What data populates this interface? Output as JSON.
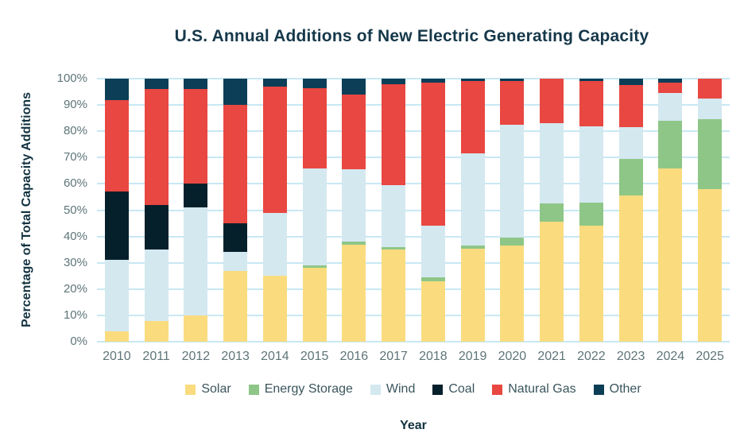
{
  "chart_data": {
    "type": "bar",
    "stacked": true,
    "title": "U.S. Annual Additions of New Electric Generating Capacity",
    "xlabel": "Year",
    "ylabel": "Percentage of Total Capacity Additions",
    "ylim": [
      0,
      100
    ],
    "y_ticks": [
      "0%",
      "10%",
      "20%",
      "30%",
      "40%",
      "50%",
      "60%",
      "70%",
      "80%",
      "90%",
      "100%"
    ],
    "grid": true,
    "legend_position": "bottom",
    "categories": [
      "2010",
      "2011",
      "2012",
      "2013",
      "2014",
      "2015",
      "2016",
      "2017",
      "2018",
      "2019",
      "2020",
      "2021",
      "2022",
      "2023",
      "2024",
      "2025"
    ],
    "series": [
      {
        "name": "Solar",
        "color": "#FADC7F",
        "values": [
          4,
          8,
          10,
          27,
          25,
          28,
          37,
          35,
          23,
          35.5,
          36.5,
          45.5,
          44,
          55.5,
          66,
          58
        ]
      },
      {
        "name": "Energy Storage",
        "color": "#8EC687",
        "values": [
          0,
          0,
          0,
          0,
          0,
          1,
          1,
          1,
          1.5,
          1,
          3,
          7,
          9,
          14,
          18,
          26.5
        ]
      },
      {
        "name": "Wind",
        "color": "#D4E8F0",
        "values": [
          27,
          27,
          41,
          7,
          24,
          37,
          27.5,
          23.5,
          19.5,
          35,
          43,
          30.5,
          29,
          12,
          10.5,
          8
        ]
      },
      {
        "name": "Coal",
        "color": "#06202B",
        "values": [
          26,
          17,
          9,
          11,
          0,
          0,
          0,
          0,
          0,
          0,
          0,
          0,
          0,
          0,
          0,
          0
        ]
      },
      {
        "name": "Natural Gas",
        "color": "#E94741",
        "values": [
          35,
          44,
          36,
          45,
          48,
          30.5,
          28.5,
          38.5,
          54.5,
          27.5,
          16.5,
          17,
          17,
          16,
          4,
          7.5
        ]
      },
      {
        "name": "Other",
        "color": "#0D3E57",
        "values": [
          8,
          4,
          4,
          10,
          3,
          3.5,
          6,
          2,
          1.5,
          1,
          1,
          0,
          1,
          2.5,
          1.5,
          0
        ]
      }
    ]
  },
  "colors": {
    "background": "#FFFFFF",
    "title_text": "#16384A",
    "axis_title_text": "#123240",
    "tick_text": "#5E7478",
    "grid": "#C8E8F3",
    "legend_text": "#3A555D"
  }
}
